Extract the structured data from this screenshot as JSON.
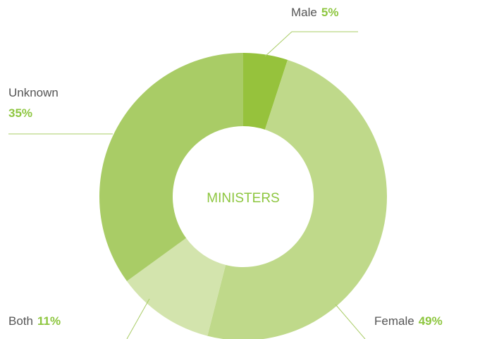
{
  "chart_data": {
    "type": "donut",
    "title": "MINISTERS",
    "categories": [
      "Male",
      "Female",
      "Both",
      "Unknown"
    ],
    "values": [
      5,
      49,
      11,
      35
    ],
    "value_labels": [
      "5%",
      "49%",
      "11%",
      "35%"
    ],
    "colors": [
      "#96c23c",
      "#bfd98a",
      "#d3e4ad",
      "#a9cc66"
    ]
  }
}
